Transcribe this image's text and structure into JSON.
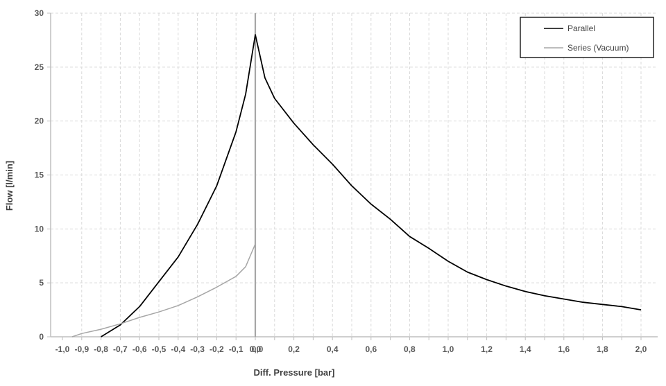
{
  "chart_data": {
    "type": "line",
    "title": "",
    "xlabel": "Diff. Pressure [bar]",
    "ylabel": "Flow [l/min]",
    "xlim": [
      -1.0,
      2.0
    ],
    "ylim": [
      0,
      30
    ],
    "x_ticks": [
      -1.0,
      -0.9,
      -0.8,
      -0.7,
      -0.6,
      -0.5,
      -0.4,
      -0.3,
      -0.2,
      -0.1,
      0.0,
      0.2,
      0.4,
      0.6,
      0.8,
      1.0,
      1.2,
      1.4,
      1.6,
      1.8,
      2.0
    ],
    "x_tick_labels": [
      "-1,0",
      "-0,9",
      "-0,8",
      "-0,7",
      "-0,6",
      "-0,5",
      "-0,4",
      "-0,3",
      "-0,2",
      "-0,1",
      "0,0",
      "0,2",
      "0,4",
      "0,6",
      "0,8",
      "1,0",
      "1,2",
      "1,4",
      "1,6",
      "1,8",
      "2,0"
    ],
    "x_extra_label": {
      "value": 0.0,
      "text": "0,0"
    },
    "y_ticks": [
      0,
      5,
      10,
      15,
      20,
      25,
      30
    ],
    "y_tick_labels": [
      "0",
      "5",
      "10",
      "15",
      "20",
      "25",
      "30"
    ],
    "grid": true,
    "legend_position": "top-right",
    "series": [
      {
        "name": "Parallel",
        "color": "#000000",
        "x": [
          -0.8,
          -0.7,
          -0.6,
          -0.5,
          -0.4,
          -0.3,
          -0.2,
          -0.1,
          -0.05,
          0.0,
          0.05,
          0.1,
          0.2,
          0.3,
          0.4,
          0.5,
          0.6,
          0.7,
          0.8,
          0.9,
          1.0,
          1.1,
          1.2,
          1.3,
          1.4,
          1.5,
          1.6,
          1.7,
          1.8,
          1.9,
          2.0
        ],
        "y": [
          0.0,
          1.1,
          2.8,
          5.1,
          7.4,
          10.4,
          14.0,
          19.0,
          22.5,
          28.0,
          24.0,
          22.1,
          19.8,
          17.8,
          16.0,
          14.0,
          12.3,
          10.9,
          9.3,
          8.2,
          7.0,
          6.0,
          5.3,
          4.7,
          4.2,
          3.8,
          3.5,
          3.2,
          3.0,
          2.8,
          2.5
        ]
      },
      {
        "name": "Series (Vacuum)",
        "color": "#a6a6a6",
        "x": [
          -0.95,
          -0.9,
          -0.8,
          -0.7,
          -0.6,
          -0.5,
          -0.4,
          -0.3,
          -0.2,
          -0.1,
          -0.05,
          0.0
        ],
        "y": [
          0.0,
          0.3,
          0.7,
          1.2,
          1.8,
          2.3,
          2.9,
          3.7,
          4.6,
          5.6,
          6.5,
          8.6
        ]
      }
    ]
  },
  "colors": {
    "grid": "#d9d9d9",
    "axis": "#bfbfbf",
    "zero_line": "#a6a6a6",
    "legend_border": "#000000"
  }
}
